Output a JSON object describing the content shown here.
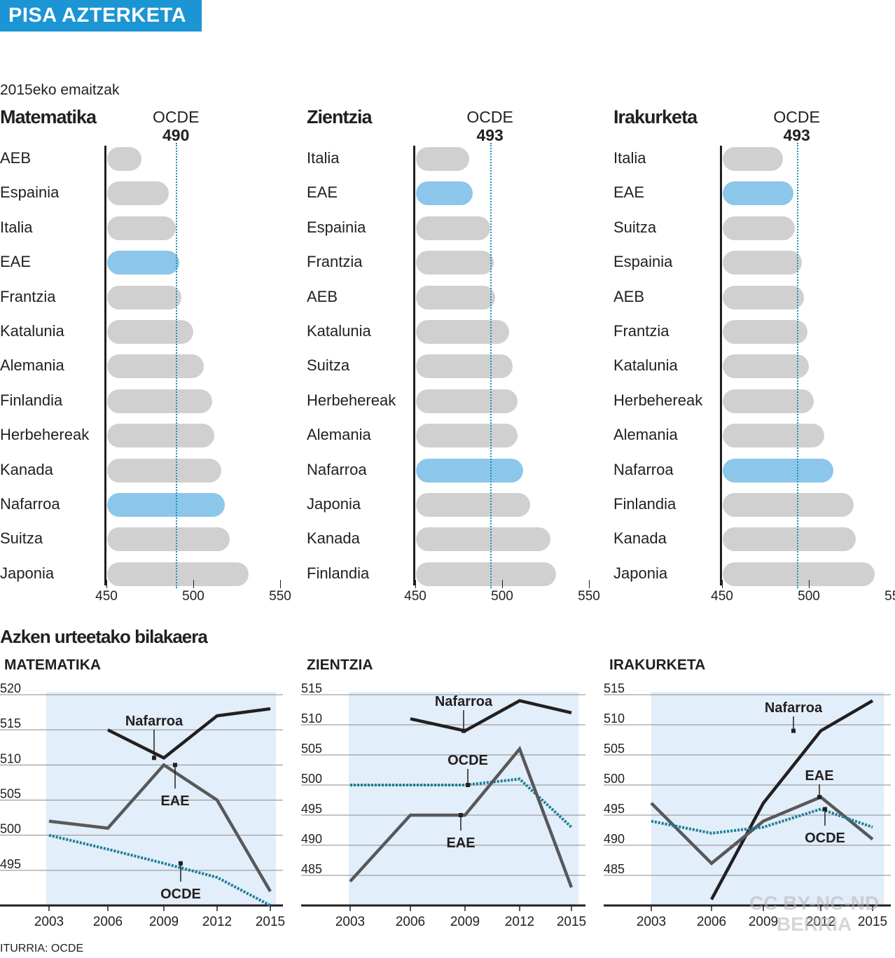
{
  "header": {
    "title": "PISA AZTERKETA",
    "subtitle": "2015eko emaitzak"
  },
  "chart_data": [
    {
      "type": "bar",
      "title": "Matematika",
      "reference": {
        "label": "OCDE",
        "value": 490
      },
      "xlim": [
        450,
        550
      ],
      "xticks": [
        450,
        500,
        550
      ],
      "categories": [
        "AEB",
        "Espainia",
        "Italia",
        "EAE",
        "Frantzia",
        "Katalunia",
        "Alemania",
        "Finlandia",
        "Herbehereak",
        "Kanada",
        "Nafarroa",
        "Suitza",
        "Japonia"
      ],
      "values": [
        470,
        486,
        490,
        492,
        493,
        500,
        506,
        511,
        512,
        516,
        518,
        521,
        532
      ],
      "highlight": [
        "EAE",
        "Nafarroa"
      ]
    },
    {
      "type": "bar",
      "title": "Zientzia",
      "reference": {
        "label": "OCDE",
        "value": 493
      },
      "xlim": [
        450,
        550
      ],
      "xticks": [
        450,
        500,
        550
      ],
      "categories": [
        "Italia",
        "EAE",
        "Espainia",
        "Frantzia",
        "AEB",
        "Katalunia",
        "Suitza",
        "Herbehereak",
        "Alemania",
        "Nafarroa",
        "Japonia",
        "Kanada",
        "Finlandia"
      ],
      "values": [
        481,
        483,
        493,
        495,
        496,
        504,
        506,
        509,
        509,
        512,
        516,
        528,
        531
      ],
      "highlight": [
        "EAE",
        "Nafarroa"
      ]
    },
    {
      "type": "bar",
      "title": "Irakurketa",
      "reference": {
        "label": "OCDE",
        "value": 493
      },
      "xlim": [
        450,
        550
      ],
      "xticks": [
        450,
        500,
        550
      ],
      "categories": [
        "Italia",
        "EAE",
        "Suitza",
        "Espainia",
        "AEB",
        "Frantzia",
        "Katalunia",
        "Herbehereak",
        "Alemania",
        "Nafarroa",
        "Finlandia",
        "Kanada",
        "Japonia"
      ],
      "values": [
        485,
        491,
        492,
        496,
        497,
        499,
        500,
        503,
        509,
        514,
        526,
        527,
        538
      ],
      "highlight": [
        "EAE",
        "Nafarroa"
      ]
    },
    {
      "type": "line",
      "title": "MATEMATIKA",
      "x": [
        2003,
        2006,
        2009,
        2012,
        2015
      ],
      "ylim": [
        490,
        520
      ],
      "yticks": [
        495,
        500,
        505,
        510,
        515,
        520
      ],
      "series": [
        {
          "name": "Nafarroa",
          "values": [
            null,
            515,
            511,
            517,
            518
          ]
        },
        {
          "name": "EAE",
          "values": [
            502,
            501,
            510,
            505,
            492
          ]
        },
        {
          "name": "OCDE",
          "values": [
            500,
            498,
            496,
            494,
            490
          ]
        }
      ]
    },
    {
      "type": "line",
      "title": "ZIENTZIA",
      "x": [
        2003,
        2006,
        2009,
        2012,
        2015
      ],
      "ylim": [
        480,
        515
      ],
      "yticks": [
        485,
        490,
        495,
        500,
        505,
        510,
        515
      ],
      "series": [
        {
          "name": "Nafarroa",
          "values": [
            null,
            511,
            509,
            514,
            512
          ]
        },
        {
          "name": "OCDE",
          "values": [
            500,
            500,
            500,
            501,
            493
          ]
        },
        {
          "name": "EAE",
          "values": [
            484,
            495,
            495,
            506,
            483
          ]
        }
      ]
    },
    {
      "type": "line",
      "title": "IRAKURKETA",
      "x": [
        2003,
        2006,
        2009,
        2012,
        2015
      ],
      "ylim": [
        480,
        515
      ],
      "yticks": [
        485,
        490,
        495,
        500,
        505,
        510,
        515
      ],
      "series": [
        {
          "name": "Nafarroa",
          "values": [
            null,
            481,
            497,
            509,
            514
          ]
        },
        {
          "name": "EAE",
          "values": [
            497,
            487,
            494,
            498,
            491
          ]
        },
        {
          "name": "OCDE",
          "values": [
            494,
            492,
            493,
            496,
            493
          ]
        }
      ]
    }
  ],
  "evolution_title": "Azken urteetako bilakaera",
  "source": "ITURRIA: OCDE",
  "watermark": {
    "line1": "CC BY-NC-ND",
    "line2": "BERRIA"
  },
  "colors": {
    "banner": "#1c95d4",
    "bar": "#d0d0d0",
    "highlight": "#8cc6ea",
    "ocde": "#1b7e99",
    "plot_bg": "#e2eef9",
    "nafarroa": "#231f20",
    "eae": "#58585a"
  }
}
